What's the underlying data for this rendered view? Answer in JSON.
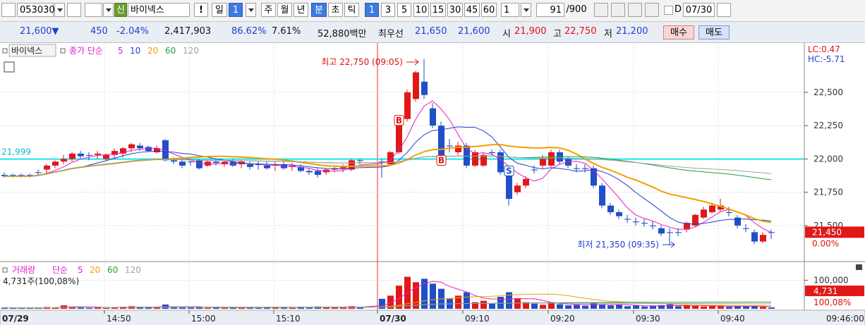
{
  "toolbar": {
    "code": "053030",
    "badge": "신",
    "name": "바이넥스",
    "alert": "!",
    "buttons": [
      {
        "text": "일",
        "selected": false
      },
      {
        "text": "1",
        "selected": true
      },
      {
        "text": "주",
        "selected": false
      },
      {
        "text": "월",
        "selected": false
      },
      {
        "text": "년",
        "selected": false
      },
      {
        "text": "분",
        "selected": true
      },
      {
        "text": "초",
        "selected": false
      },
      {
        "text": "틱",
        "selected": false
      },
      {
        "text": "1",
        "selected": true
      },
      {
        "text": "3",
        "selected": false
      },
      {
        "text": "5",
        "selected": false
      },
      {
        "text": "10",
        "selected": false
      },
      {
        "text": "15",
        "selected": false
      },
      {
        "text": "30",
        "selected": false
      },
      {
        "text": "45",
        "selected": false
      },
      {
        "text": "60",
        "selected": false
      }
    ],
    "unit": "1",
    "count": "91",
    "total": "/900",
    "day_check": "D",
    "date": "07/30"
  },
  "quote": {
    "items": [
      {
        "text": "21,600▼",
        "tone": "down"
      },
      {
        "text": "450",
        "tone": "down"
      },
      {
        "text": "-2.04%",
        "tone": "down"
      },
      {
        "text": "2,417,903",
        "tone": "plain"
      },
      {
        "text": "86.62%",
        "tone": "down"
      },
      {
        "text": "7.61%",
        "tone": "plain"
      },
      {
        "text": "52,880백만",
        "tone": "plain"
      },
      {
        "text": "최우선",
        "tone": "plain"
      },
      {
        "text": "21,650",
        "tone": "down"
      },
      {
        "text": "21,600",
        "tone": "down"
      },
      {
        "text": "시",
        "tone": "plain"
      },
      {
        "text": "21,900",
        "tone": "up"
      },
      {
        "text": "고",
        "tone": "plain"
      },
      {
        "text": "22,750",
        "tone": "up"
      },
      {
        "text": "저",
        "tone": "plain"
      },
      {
        "text": "21,200",
        "tone": "down"
      }
    ],
    "buy": "매수",
    "sell": "매도"
  },
  "price_pane": {
    "legend": {
      "name": "바이넥스",
      "ma_label": "종가 단순",
      "mas": [
        {
          "window": 5,
          "color": "#e020c0"
        },
        {
          "window": 10,
          "color": "#2040d0"
        },
        {
          "window": 20,
          "color": "#f0a000"
        },
        {
          "window": 60,
          "color": "#20a040"
        },
        {
          "window": 120,
          "color": "#a0a0a0"
        }
      ]
    },
    "ylim": [
      21235,
      22865
    ],
    "yticks": [
      {
        "value": 22500,
        "label": "22,500"
      },
      {
        "value": 22250,
        "label": "22,250"
      },
      {
        "value": 22000,
        "label": "22,000"
      },
      {
        "value": 21750,
        "label": "21,750"
      },
      {
        "value": 21500,
        "label": "21,500"
      }
    ],
    "ref_line": {
      "value": 21999,
      "label": "21,999"
    },
    "lc": "LC:0.47",
    "hc": "HC:-5.71",
    "current": {
      "value": 21450,
      "label": "21,450"
    },
    "change": "0.00%",
    "high_note": "최고 22,750 (09:05)",
    "low_note": "최저 21,350 (09:35)",
    "signals": [
      {
        "label": "B",
        "index": 2
      },
      {
        "label": "B",
        "index": 7
      },
      {
        "label": "S",
        "index": 15
      }
    ]
  },
  "volume_pane": {
    "legend": {
      "name": "거래량",
      "ma_label": "단순",
      "mas": [
        {
          "window": 5,
          "color": "#e020c0"
        },
        {
          "window": 20,
          "color": "#f0a000"
        },
        {
          "window": 60,
          "color": "#20a040"
        },
        {
          "window": 120,
          "color": "#a0a0a0"
        }
      ]
    },
    "summary": "4,731주(100,08%)",
    "ylim": [
      0,
      153000
    ],
    "yticks": [
      {
        "value": 100000,
        "label": "100,000"
      }
    ],
    "current": {
      "value": 4731,
      "label": "4,731"
    },
    "change": "100,08%"
  },
  "x_axis": {
    "labels": [
      "07/29",
      "14:50",
      "15:00",
      "15:10",
      "07/30",
      "09:10",
      "09:20",
      "09:30",
      "09:40",
      "09:46:00"
    ]
  },
  "day1": {
    "candles": [
      [
        21880,
        21900,
        21860,
        21870
      ],
      [
        21880,
        21890,
        21860,
        21870
      ],
      [
        21880,
        21890,
        21860,
        21870
      ],
      [
        21880,
        21890,
        21860,
        21870
      ],
      [
        21900,
        21920,
        21880,
        21900
      ],
      [
        21920,
        21960,
        21880,
        21950
      ],
      [
        21950,
        21990,
        21930,
        21980
      ],
      [
        21980,
        22030,
        21960,
        22000
      ],
      [
        22000,
        22050,
        21980,
        22040
      ],
      [
        22040,
        22060,
        22000,
        22020
      ],
      [
        22030,
        22050,
        21990,
        22030
      ],
      [
        22030,
        22060,
        22000,
        22040
      ],
      [
        22000,
        22040,
        21990,
        22030
      ],
      [
        22030,
        22080,
        22000,
        22060
      ],
      [
        22040,
        22090,
        22010,
        22080
      ],
      [
        22080,
        22120,
        22050,
        22110
      ],
      [
        22100,
        22120,
        22060,
        22080
      ],
      [
        22090,
        22100,
        22050,
        22060
      ],
      [
        22050,
        22100,
        22040,
        22080
      ],
      [
        22140,
        22150,
        21980,
        21990
      ],
      [
        21990,
        22010,
        21960,
        21980
      ],
      [
        21980,
        22000,
        21930,
        21950
      ],
      [
        21980,
        22000,
        21950,
        21980
      ],
      [
        21990,
        22000,
        21920,
        21930
      ],
      [
        21950,
        21990,
        21940,
        21980
      ],
      [
        21980,
        22000,
        21950,
        21970
      ],
      [
        21960,
        21990,
        21940,
        21980
      ],
      [
        21980,
        22000,
        21940,
        21950
      ],
      [
        21960,
        21990,
        21930,
        21980
      ],
      [
        21960,
        21980,
        21920,
        21940
      ],
      [
        21960,
        21980,
        21920,
        21960
      ],
      [
        21950,
        21980,
        21920,
        21930
      ],
      [
        21950,
        21980,
        21910,
        21960
      ],
      [
        21960,
        21990,
        21920,
        21930
      ],
      [
        21940,
        21970,
        21910,
        21950
      ],
      [
        21940,
        21960,
        21900,
        21910
      ],
      [
        21910,
        21930,
        21880,
        21900
      ],
      [
        21910,
        21930,
        21860,
        21880
      ],
      [
        21900,
        21930,
        21880,
        21920
      ],
      [
        21920,
        21950,
        21900,
        21930
      ],
      [
        21930,
        21960,
        21900,
        21940
      ],
      [
        21920,
        22000,
        21910,
        21990
      ],
      [
        21990,
        22000,
        21960,
        21990
      ]
    ],
    "volumes": [
      4000,
      3000,
      3500,
      2500,
      3000,
      6000,
      5000,
      12000,
      8000,
      4000,
      3000,
      5000,
      3000,
      6000,
      7000,
      9000,
      5000,
      4000,
      6000,
      15000,
      5000,
      6000,
      4000,
      7000,
      3000,
      4000,
      3000,
      5000,
      4000,
      6000,
      3000,
      5000,
      4000,
      6000,
      3000,
      7000,
      5000,
      8000,
      6000,
      4000,
      5000,
      9000,
      4000
    ]
  },
  "day2": {
    "candles": [
      [
        21980,
        22000,
        21860,
        21980
      ],
      [
        21960,
        22060,
        21950,
        22050
      ],
      [
        22050,
        22320,
        22040,
        22300
      ],
      [
        22300,
        22520,
        22280,
        22500
      ],
      [
        22450,
        22660,
        22430,
        22650
      ],
      [
        22580,
        22750,
        22450,
        22480
      ],
      [
        22380,
        22420,
        22230,
        22250
      ],
      [
        22250,
        22280,
        21980,
        22000
      ],
      [
        22100,
        22150,
        22050,
        22100
      ],
      [
        22050,
        22130,
        22030,
        22100
      ],
      [
        22100,
        22120,
        21930,
        21950
      ],
      [
        21950,
        22070,
        21940,
        22050
      ],
      [
        21950,
        22050,
        21940,
        22030
      ],
      [
        22050,
        22070,
        22030,
        22050
      ],
      [
        22050,
        22070,
        21880,
        21900
      ],
      [
        21900,
        21920,
        21650,
        21700
      ],
      [
        21750,
        21820,
        21730,
        21800
      ],
      [
        21800,
        21870,
        21780,
        21850
      ],
      [
        21920,
        21950,
        21890,
        21920
      ],
      [
        21950,
        22030,
        21930,
        22000
      ],
      [
        21950,
        22070,
        21940,
        22050
      ],
      [
        22050,
        22070,
        21960,
        21980
      ],
      [
        22000,
        22020,
        21930,
        21950
      ],
      [
        21930,
        21960,
        21900,
        21930
      ],
      [
        21930,
        21960,
        21900,
        21930
      ],
      [
        21930,
        21950,
        21780,
        21800
      ],
      [
        21800,
        21820,
        21630,
        21650
      ],
      [
        21650,
        21670,
        21580,
        21600
      ],
      [
        21600,
        21620,
        21550,
        21570
      ],
      [
        21550,
        21580,
        21520,
        21550
      ],
      [
        21530,
        21560,
        21500,
        21530
      ],
      [
        21520,
        21550,
        21490,
        21520
      ],
      [
        21500,
        21530,
        21470,
        21500
      ],
      [
        21480,
        21500,
        21420,
        21440
      ],
      [
        21450,
        21480,
        21350,
        21450
      ],
      [
        21450,
        21480,
        21420,
        21450
      ],
      [
        21470,
        21530,
        21450,
        21520
      ],
      [
        21500,
        21590,
        21490,
        21580
      ],
      [
        21560,
        21640,
        21550,
        21620
      ],
      [
        21600,
        21670,
        21590,
        21650
      ],
      [
        21620,
        21700,
        21600,
        21650
      ],
      [
        21600,
        21640,
        21570,
        21600
      ],
      [
        21560,
        21580,
        21480,
        21500
      ],
      [
        21480,
        21510,
        21450,
        21480
      ],
      [
        21450,
        21470,
        21360,
        21380
      ],
      [
        21380,
        21450,
        21370,
        21430
      ],
      [
        21450,
        21470,
        21400,
        21450
      ]
    ],
    "volumes": [
      35000,
      46000,
      81000,
      112000,
      93000,
      105000,
      88000,
      70000,
      35000,
      46000,
      58000,
      23000,
      28000,
      18000,
      42000,
      58000,
      35000,
      23000,
      18000,
      14000,
      23000,
      16000,
      12000,
      14000,
      11000,
      21000,
      16000,
      12000,
      14000,
      9000,
      11000,
      8000,
      10000,
      13000,
      16000,
      9000,
      12000,
      10000,
      8000,
      11000,
      9000,
      7000,
      10000,
      8000,
      12000,
      7000,
      4731
    ]
  }
}
